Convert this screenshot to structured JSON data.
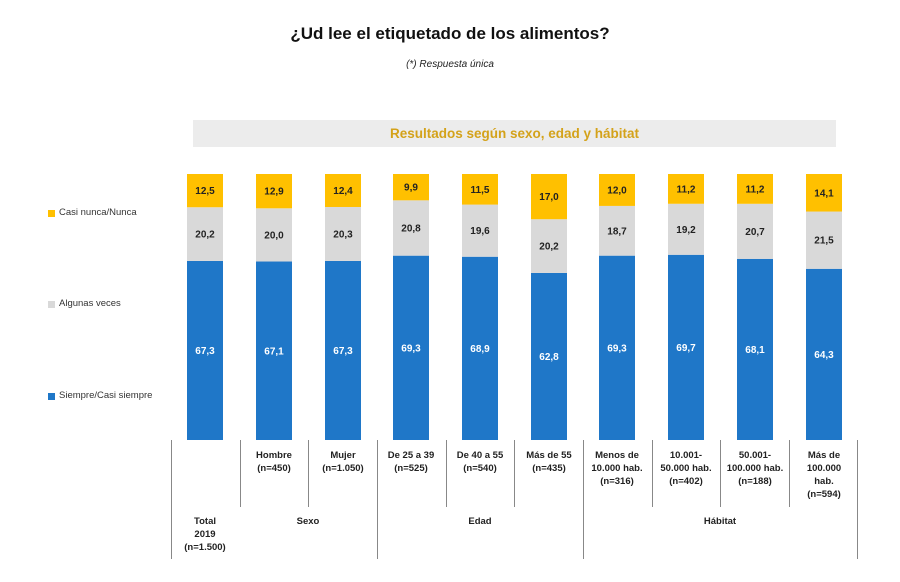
{
  "title": "¿Ud lee el etiquetado de los alimentos?",
  "subtitle": "(*) Respuesta única",
  "banner": "Resultados según sexo, edad y hábitat",
  "colors": {
    "siempre": "#1f77c8",
    "algunas": "#d9d9d9",
    "casi_nunca": "#ffc000",
    "banner_text": "#d4a21a"
  },
  "legend": [
    {
      "key": "casi_nunca",
      "label": "Casi nunca/Nunca"
    },
    {
      "key": "algunas",
      "label": "Algunas veces"
    },
    {
      "key": "siempre",
      "label": "Siempre/Casi siempre"
    }
  ],
  "chart_data": {
    "type": "bar",
    "stacked": true,
    "ylim": [
      0,
      100
    ],
    "categories": [
      "Total 2019 (n=1.500)",
      "Hombre (n=450)",
      "Mujer (n=1.050)",
      "De 25 a 39 (n=525)",
      "De 40 a 55 (n=540)",
      "Más de 55 (n=435)",
      "Menos de 10.000 hab. (n=316)",
      "10.001-50.000 hab. (n=402)",
      "50.001-100.000 hab. (n=188)",
      "Más de 100.000 hab. (n=594)"
    ],
    "series": [
      {
        "name": "Siempre/Casi siempre",
        "key": "siempre",
        "values": [
          67.3,
          67.1,
          67.3,
          69.3,
          68.9,
          62.8,
          69.3,
          69.7,
          68.1,
          64.3
        ],
        "labels": [
          "67,3",
          "67,1",
          "67,3",
          "69,3",
          "68,9",
          "62,8",
          "69,3",
          "69,7",
          "68,1",
          "64,3"
        ]
      },
      {
        "name": "Algunas veces",
        "key": "algunas",
        "values": [
          20.2,
          20.0,
          20.3,
          20.8,
          19.6,
          20.2,
          18.7,
          19.2,
          20.7,
          21.5
        ],
        "labels": [
          "20,2",
          "20,0",
          "20,3",
          "20,8",
          "19,6",
          "20,2",
          "18,7",
          "19,2",
          "20,7",
          "21,5"
        ]
      },
      {
        "name": "Casi nunca/Nunca",
        "key": "casi_nunca",
        "values": [
          12.5,
          12.9,
          12.4,
          9.9,
          11.5,
          17.0,
          12.0,
          11.2,
          11.2,
          14.1
        ],
        "labels": [
          "12,5",
          "12,9",
          "12,4",
          "9,9",
          "11,5",
          "17,0",
          "12,0",
          "11,2",
          "11,2",
          "14,1"
        ]
      }
    ]
  },
  "table": {
    "column_labels": [
      [
        "Total",
        "2019",
        "(n=1.500)"
      ],
      [
        "Hombre",
        "(n=450)"
      ],
      [
        "Mujer",
        "(n=1.050)"
      ],
      [
        "De 25 a 39",
        "(n=525)"
      ],
      [
        "De 40 a 55",
        "(n=540)"
      ],
      [
        "Más de 55",
        "(n=435)"
      ],
      [
        "Menos de",
        "10.000 hab.",
        "(n=316)"
      ],
      [
        "10.001-",
        "50.000 hab.",
        "(n=402)"
      ],
      [
        "50.001-",
        "100.000 hab.",
        "(n=188)"
      ],
      [
        "Más de",
        "100.000",
        "hab.",
        "(n=594)"
      ]
    ],
    "groups": [
      "Sexo",
      "Edad",
      "Hábitat"
    ]
  }
}
